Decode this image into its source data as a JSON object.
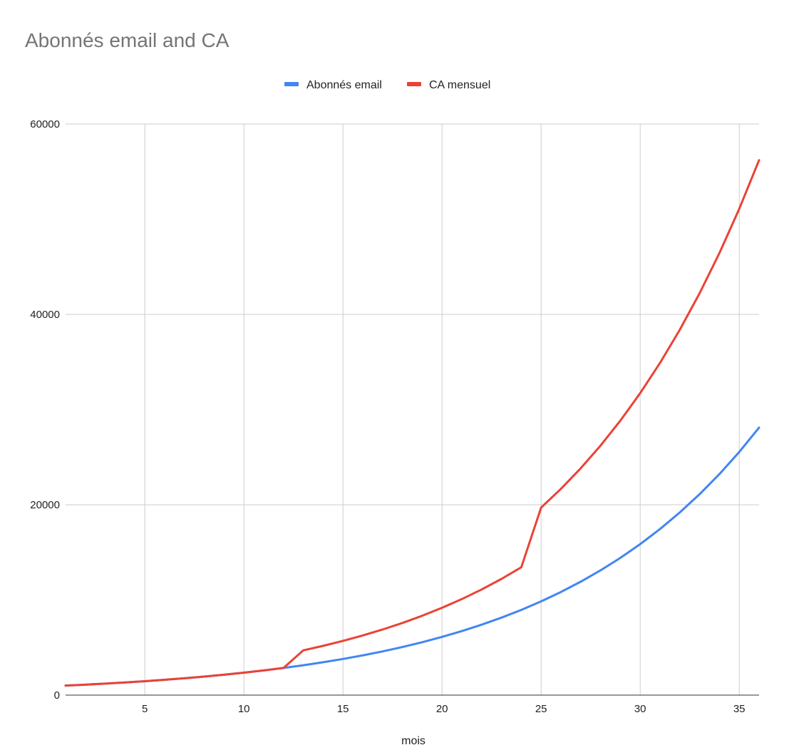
{
  "chart_data": {
    "type": "line",
    "title": "Abonnés email and CA",
    "xlabel": "mois",
    "ylabel": "",
    "xlim": [
      1,
      36
    ],
    "ylim": [
      0,
      60000
    ],
    "x_ticks": [
      5,
      10,
      15,
      20,
      25,
      30,
      35
    ],
    "y_ticks": [
      0,
      20000,
      40000,
      60000
    ],
    "grid": true,
    "legend_position": "top",
    "x": [
      1,
      2,
      3,
      4,
      5,
      6,
      7,
      8,
      9,
      10,
      11,
      12,
      13,
      14,
      15,
      16,
      17,
      18,
      19,
      20,
      21,
      22,
      23,
      24,
      25,
      26,
      27,
      28,
      29,
      30,
      31,
      32,
      33,
      34,
      35,
      36
    ],
    "series": [
      {
        "name": "Abonnés email",
        "color": "#4285F4",
        "values": [
          1000,
          1100,
          1210,
          1331,
          1464,
          1611,
          1772,
          1949,
          2144,
          2358,
          2594,
          2853,
          3138,
          3452,
          3797,
          4177,
          4595,
          5054,
          5560,
          6116,
          6727,
          7400,
          8140,
          8954,
          9850,
          10835,
          11918,
          13110,
          14421,
          15863,
          17449,
          19194,
          21113,
          23225,
          25547,
          28102
        ]
      },
      {
        "name": "CA mensuel",
        "color": "#EA4335",
        "values": [
          1000,
          1100,
          1210,
          1331,
          1464,
          1611,
          1772,
          1949,
          2144,
          2358,
          2594,
          2853,
          4707,
          5178,
          5696,
          6266,
          6892,
          7581,
          8340,
          9174,
          10091,
          11100,
          12210,
          13431,
          19700,
          21670,
          23837,
          26220,
          28842,
          31727,
          34899,
          38389,
          42228,
          46451,
          51096,
          56205
        ]
      }
    ]
  }
}
